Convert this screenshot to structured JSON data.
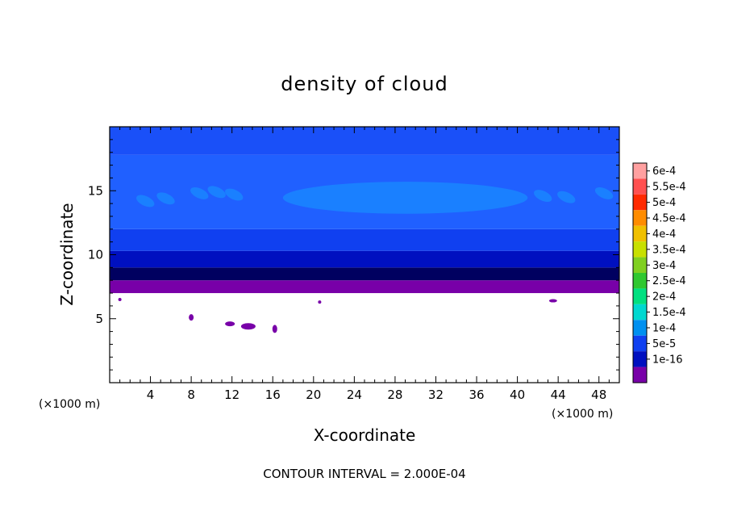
{
  "chart_data": {
    "type": "contour",
    "title": "density of cloud",
    "xlabel": "X-coordinate",
    "ylabel": "Z-coordinate",
    "x_unit_left": "(×1000 m)",
    "x_unit_right": "(×1000 m)",
    "xlim": [
      0,
      50
    ],
    "ylim": [
      0,
      20
    ],
    "xticks": [
      "4",
      "8",
      "12",
      "16",
      "20",
      "24",
      "28",
      "32",
      "36",
      "40",
      "44",
      "48"
    ],
    "yticks": [
      "5",
      "10",
      "15"
    ],
    "contour_interval_text": "CONTOUR INTERVAL = 2.000E-04",
    "colorbar": {
      "labels": [
        "6e-4",
        "5.5e-4",
        "5e-4",
        "4.5e-4",
        "4e-4",
        "3.5e-4",
        "3e-4",
        "2.5e-4",
        "2e-4",
        "1.5e-4",
        "1e-4",
        "5e-5",
        "1e-16"
      ],
      "colors": [
        "#ffa0a0",
        "#ff5050",
        "#ff2a00",
        "#ff8c00",
        "#f0c000",
        "#c8e000",
        "#80d020",
        "#30c830",
        "#00e080",
        "#00d8d0",
        "#0090f0",
        "#1040f0",
        "#0010c0",
        "#7800a8"
      ]
    },
    "layers": [
      {
        "z_bottom": 7.0,
        "z_top": 8.0,
        "color": "#7800a8"
      },
      {
        "z_bottom": 8.0,
        "z_top": 9.0,
        "color": "#000060"
      },
      {
        "z_bottom": 9.0,
        "z_top": 10.3,
        "color": "#0010c0"
      },
      {
        "z_bottom": 10.3,
        "z_top": 12.0,
        "color": "#1040f0"
      },
      {
        "z_bottom": 12.0,
        "z_top": 17.8,
        "color": "#2060ff"
      },
      {
        "z_bottom": 17.8,
        "z_top": 20.0,
        "color": "#1a50f8"
      }
    ],
    "upper_patch": {
      "x": [
        17,
        41
      ],
      "z": [
        13.2,
        15.7
      ],
      "color": "#1a80ff"
    }
  }
}
